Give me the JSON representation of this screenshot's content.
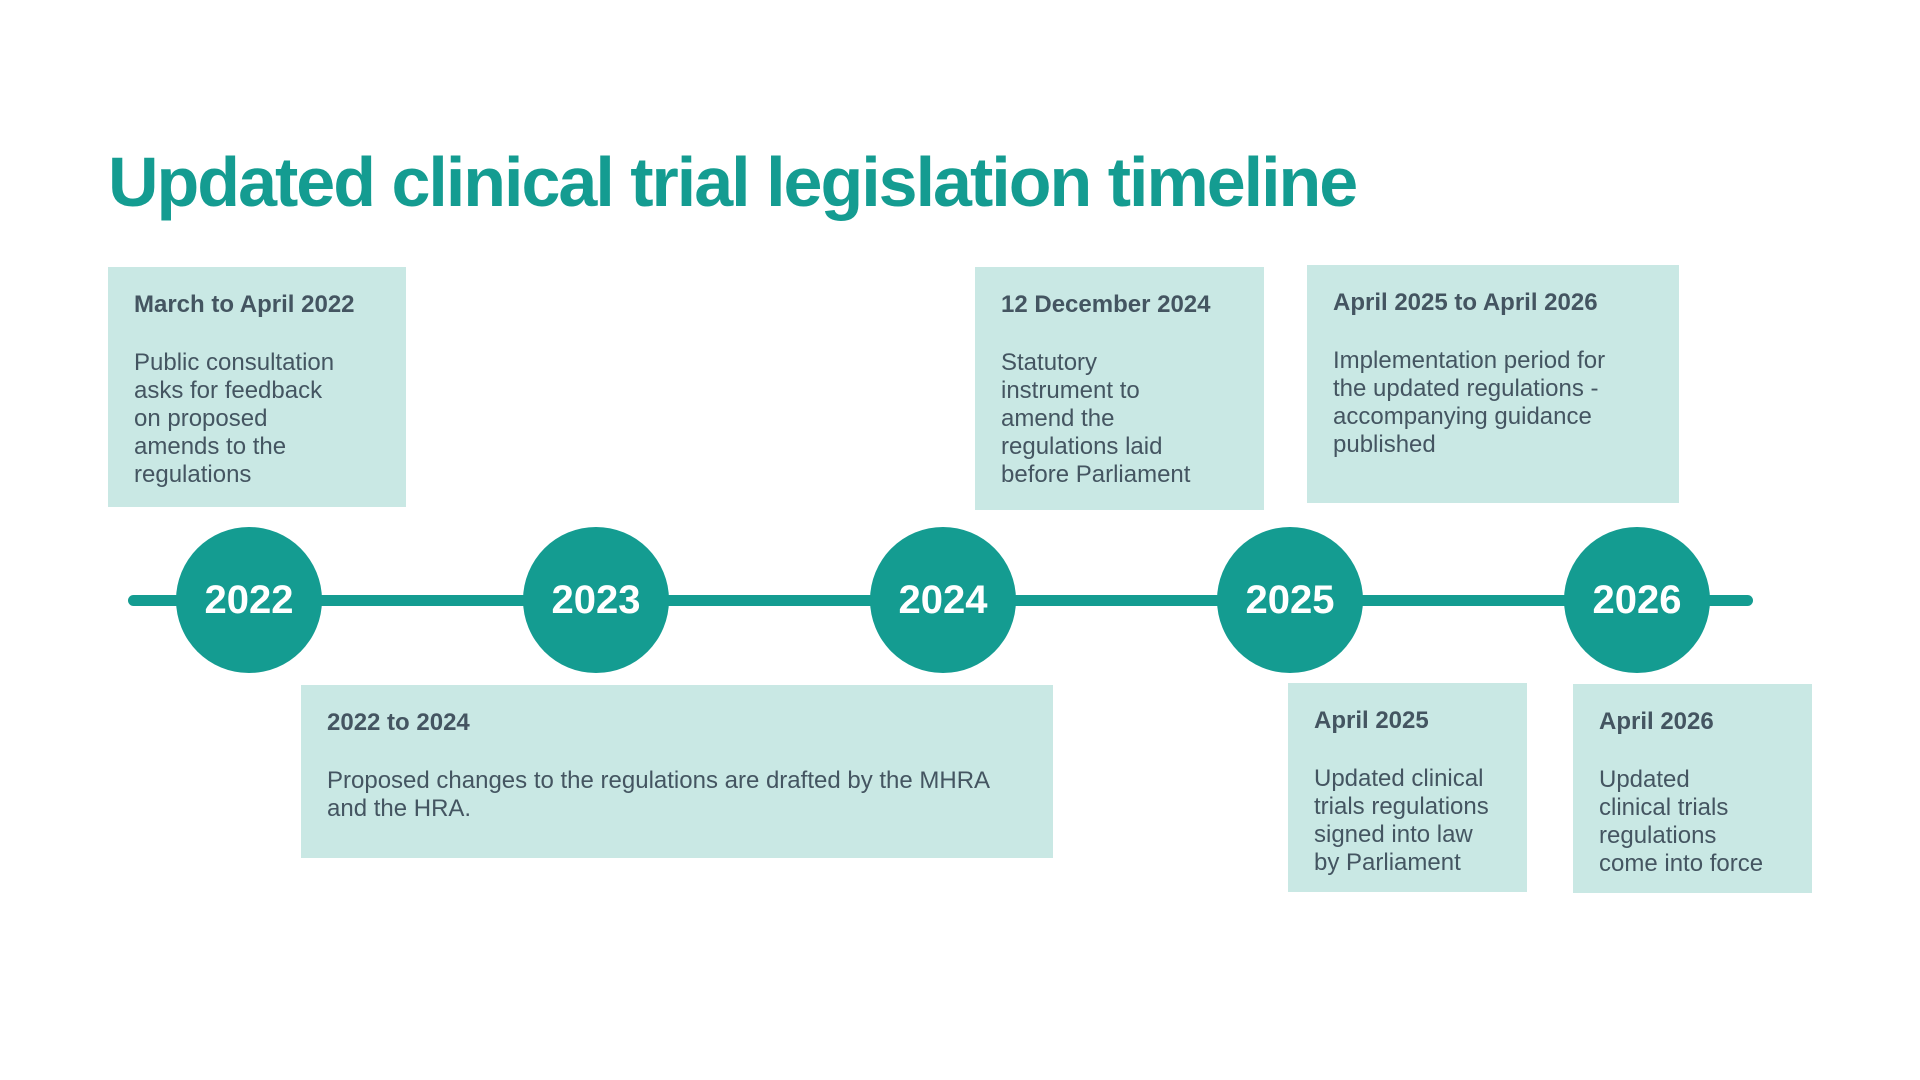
{
  "title": "Updated clinical trial legislation timeline",
  "colors": {
    "accent_teal": "#149c91",
    "event_box_background": "#c9e8e4",
    "event_text": "#445561",
    "year_text": "#ffffff",
    "page_background": "#ffffff"
  },
  "timeline": {
    "years": [
      "2022",
      "2023",
      "2024",
      "2025",
      "2026"
    ]
  },
  "events_top": [
    {
      "heading": "March to April 2022",
      "body": "Public consultation\nasks for feedback\non proposed\namends to the\nregulations"
    },
    {
      "heading": "12 December 2024",
      "body": "Statutory\ninstrument to\namend the\nregulations laid\nbefore Parliament"
    },
    {
      "heading": "April 2025 to April 2026",
      "body": "Implementation period for\nthe updated regulations -\naccompanying guidance\npublished"
    }
  ],
  "events_bottom": [
    {
      "heading": "2022 to 2024",
      "body": "Proposed changes to the regulations are drafted by the MHRA\nand the HRA."
    },
    {
      "heading": "April 2025",
      "body": "Updated clinical\ntrials regulations\nsigned into law\nby Parliament"
    },
    {
      "heading": "April 2026",
      "body": "Updated\nclinical trials\nregulations\ncome into force"
    }
  ]
}
